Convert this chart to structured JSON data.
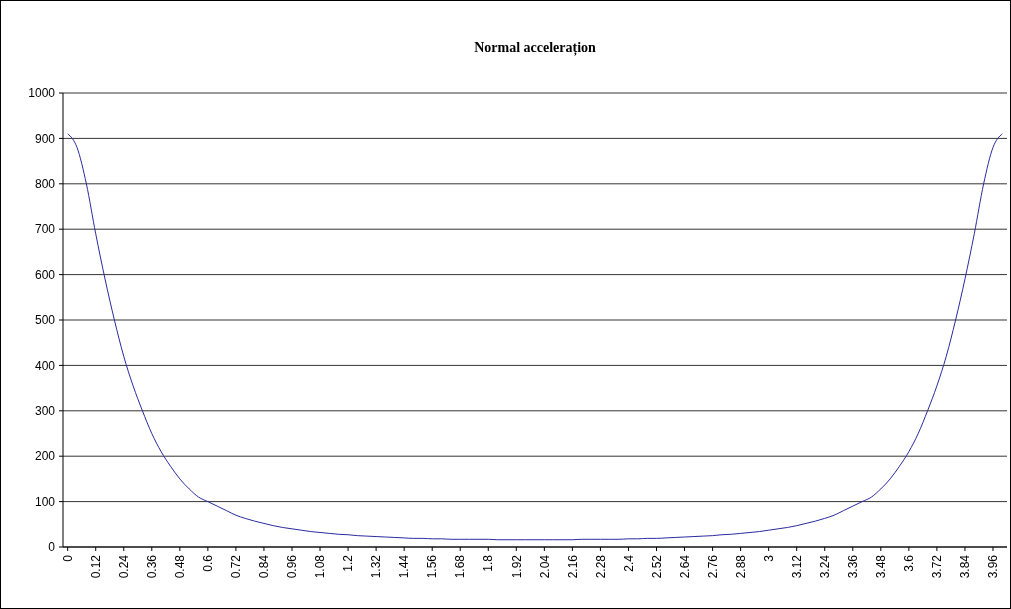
{
  "chart_data": {
    "type": "line",
    "title": "Normal accelerațion",
    "categories": [
      "0",
      null,
      null,
      "0.12",
      null,
      null,
      "0.24",
      null,
      null,
      "0.36",
      null,
      null,
      "0.48",
      null,
      null,
      "0.6",
      null,
      null,
      "0.72",
      null,
      null,
      "0.84",
      null,
      null,
      "0.96",
      null,
      null,
      "1.08",
      null,
      null,
      "1.2",
      null,
      null,
      "1.32",
      null,
      null,
      "1.44",
      null,
      null,
      "1.56",
      null,
      null,
      "1.68",
      null,
      null,
      "1.8",
      null,
      null,
      "1.92",
      null,
      null,
      "2.04",
      null,
      null,
      "2.16",
      null,
      null,
      "2.28",
      null,
      null,
      "2.4",
      null,
      null,
      "2.52",
      null,
      null,
      "2.64",
      null,
      null,
      "2.76",
      null,
      null,
      "2.88",
      null,
      null,
      "3",
      null,
      null,
      "3.12",
      null,
      null,
      "3.24",
      null,
      null,
      "3.36",
      null,
      null,
      "3.48",
      null,
      null,
      "3.6",
      null,
      null,
      "3.72",
      null,
      null,
      "3.84",
      null,
      null,
      "3.96",
      null
    ],
    "series": [
      {
        "color": "#2a2aa0",
        "values": [
          910,
          880,
          800,
          690,
          590,
          500,
          420,
          355,
          300,
          250,
          210,
          178,
          150,
          128,
          110,
          100,
          90,
          80,
          70,
          63,
          57,
          52,
          47,
          43,
          40,
          37,
          34,
          32,
          30,
          28,
          27,
          25,
          24,
          23,
          22,
          21,
          20,
          19,
          19,
          18,
          18,
          17,
          17,
          17,
          17,
          17,
          16,
          16,
          16,
          16,
          16,
          16,
          16,
          16,
          16,
          17,
          17,
          17,
          17,
          17,
          18,
          18,
          19,
          19,
          20,
          21,
          22,
          23,
          24,
          25,
          27,
          28,
          30,
          32,
          34,
          37,
          40,
          43,
          47,
          52,
          57,
          63,
          70,
          80,
          90,
          100,
          110,
          128,
          150,
          178,
          210,
          250,
          300,
          355,
          420,
          500,
          590,
          690,
          800,
          880,
          910
        ]
      }
    ],
    "ylim": [
      0,
      1000
    ],
    "yticks": [
      0,
      100,
      200,
      300,
      400,
      500,
      600,
      700,
      800,
      900,
      1000
    ],
    "grid": "y"
  }
}
